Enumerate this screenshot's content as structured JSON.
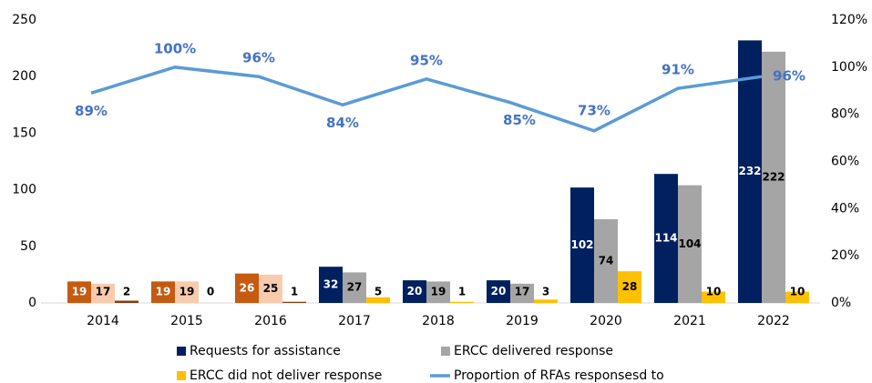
{
  "chart_data": {
    "type": "bar",
    "categories": [
      "2014",
      "2015",
      "2016",
      "2017",
      "2018",
      "2019",
      "2020",
      "2021",
      "2022"
    ],
    "series": [
      {
        "name": "Requests for assistance",
        "color": "#002060",
        "colors": [
          "#c55a11",
          "#c55a11",
          "#c55a11",
          "#002060",
          "#002060",
          "#002060",
          "#002060",
          "#002060",
          "#002060"
        ],
        "values": [
          19,
          19,
          26,
          32,
          20,
          20,
          102,
          114,
          232
        ]
      },
      {
        "name": "ERCC delivered response",
        "color": "#a5a5a5",
        "colors": [
          "#f8cbad",
          "#f8cbad",
          "#f8cbad",
          "#a5a5a5",
          "#a5a5a5",
          "#a5a5a5",
          "#a5a5a5",
          "#a5a5a5",
          "#a5a5a5"
        ],
        "values": [
          17,
          19,
          25,
          27,
          19,
          17,
          74,
          104,
          222
        ]
      },
      {
        "name": "ERCC did not deliver response",
        "color": "#ffc000",
        "colors": [
          "#843c0c",
          "#843c0c",
          "#843c0c",
          "#ffc000",
          "#ffc000",
          "#ffc000",
          "#ffc000",
          "#ffc000",
          "#ffc000"
        ],
        "values": [
          2,
          0,
          1,
          5,
          1,
          3,
          28,
          10,
          10
        ]
      },
      {
        "name": "Proportion of RFAs responsesd to",
        "color": "#5b9bd5",
        "type": "line",
        "axis": "y2",
        "values": [
          89,
          100,
          96,
          84,
          95,
          85,
          73,
          91,
          96
        ],
        "value_labels": [
          "89%",
          "100%",
          "96%",
          "84%",
          "95%",
          "85%",
          "73%",
          "91%",
          "96%"
        ]
      }
    ],
    "ylim": [
      0,
      250
    ],
    "yticks": [
      0,
      50,
      100,
      150,
      200,
      250
    ],
    "y2lim": [
      0,
      120
    ],
    "y2ticks": [
      {
        "value": 0,
        "label": "0%"
      },
      {
        "value": 20,
        "label": "20%"
      },
      {
        "value": 40,
        "label": "40%"
      },
      {
        "value": 60,
        "label": "60%"
      },
      {
        "value": 80,
        "label": "80%"
      },
      {
        "value": 100,
        "label": "100%"
      },
      {
        "value": 120,
        "label": "120%"
      }
    ],
    "grid": false,
    "legend": "bottom"
  }
}
